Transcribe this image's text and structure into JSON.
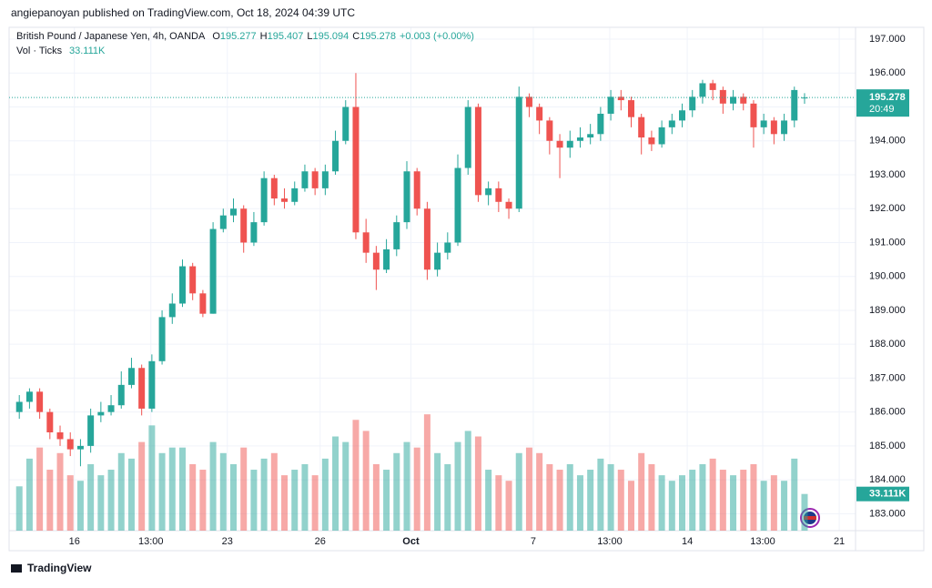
{
  "header": {
    "publisher": "angiepanoyan published on TradingView.com, Oct 18, 2024 04:39 UTC",
    "footer": "TradingView"
  },
  "chart_data": {
    "type": "candlestick",
    "symbol": "British Pound / Japanese Yen, 4h, OANDA",
    "ohlc_letters": [
      "O",
      "H",
      "L",
      "C"
    ],
    "change_label": "+0.003 (+0.00%)",
    "volume_title": "Vol · Ticks",
    "countdown": "20:49",
    "up_color": "#26a69a",
    "down_color": "#ef5350",
    "xlim": [
      -1,
      82
    ],
    "xticks": [
      {
        "value": 5.4,
        "label": "16"
      },
      {
        "value": 12.9,
        "label": "13:00"
      },
      {
        "value": 20.4,
        "label": "23"
      },
      {
        "value": 29.5,
        "label": "26"
      },
      {
        "value": 38.4,
        "label": "Oct"
      },
      {
        "value": 50.4,
        "label": "7"
      },
      {
        "value": 57.9,
        "label": "13:00"
      },
      {
        "value": 65.5,
        "label": "14"
      },
      {
        "value": 72.9,
        "label": "13:00"
      },
      {
        "value": 80.4,
        "label": "21"
      }
    ],
    "ylim": [
      182.5,
      197.35
    ],
    "yticks": [
      {
        "value": 183,
        "label": "183.000"
      },
      {
        "value": 184,
        "label": "184.000"
      },
      {
        "value": 185,
        "label": "185.000"
      },
      {
        "value": 186,
        "label": "186.000"
      },
      {
        "value": 187,
        "label": "187.000"
      },
      {
        "value": 188,
        "label": "188.000"
      },
      {
        "value": 189,
        "label": "189.000"
      },
      {
        "value": 190,
        "label": "190.000"
      },
      {
        "value": 191,
        "label": "191.000"
      },
      {
        "value": 192,
        "label": "192.000"
      },
      {
        "value": 193,
        "label": "193.000"
      },
      {
        "value": 194,
        "label": "194.000"
      },
      {
        "value": 195,
        "label": "195.000"
      },
      {
        "value": 196,
        "label": "196.000"
      },
      {
        "value": 197,
        "label": "197.000"
      }
    ],
    "grid": true,
    "open": [
      186.0,
      186.3,
      186.6,
      186.0,
      185.4,
      185.2,
      184.9,
      185.0,
      185.9,
      186.0,
      186.2,
      186.8,
      187.3,
      186.1,
      187.5,
      188.8,
      189.2,
      190.3,
      189.5,
      188.9,
      191.4,
      191.8,
      192.0,
      191.0,
      191.6,
      192.9,
      192.3,
      192.2,
      192.6,
      193.1,
      192.6,
      193.1,
      194.0,
      195.0,
      191.3,
      190.7,
      190.2,
      190.8,
      191.6,
      193.1,
      192.0,
      190.2,
      190.7,
      191.0,
      193.2,
      195.0,
      192.4,
      192.6,
      192.2,
      192.0,
      195.3,
      195.0,
      194.6,
      194.0,
      193.8,
      194.0,
      194.1,
      194.2,
      194.8,
      195.3,
      195.2,
      194.7,
      194.1,
      193.9,
      194.4,
      194.6,
      194.9,
      195.3,
      195.7,
      195.5,
      195.1,
      195.3,
      195.1,
      194.4,
      194.6,
      194.2,
      194.6,
      195.277
    ],
    "high": [
      186.5,
      186.7,
      186.7,
      186.1,
      185.6,
      185.4,
      185.2,
      186.1,
      186.3,
      186.5,
      187.2,
      187.6,
      187.4,
      187.7,
      189.0,
      189.5,
      190.5,
      190.4,
      189.6,
      191.6,
      192.0,
      192.3,
      192.1,
      191.9,
      193.1,
      193.0,
      192.6,
      192.8,
      193.3,
      193.2,
      193.3,
      194.3,
      195.2,
      196.0,
      191.7,
      190.9,
      191.1,
      191.8,
      193.4,
      193.2,
      192.2,
      191.0,
      191.3,
      193.6,
      195.2,
      195.1,
      192.8,
      192.8,
      192.3,
      195.6,
      195.4,
      195.1,
      194.7,
      194.2,
      194.3,
      194.4,
      194.5,
      195.0,
      195.5,
      195.5,
      195.3,
      194.8,
      194.3,
      194.6,
      194.8,
      195.1,
      195.5,
      195.8,
      195.8,
      195.6,
      195.5,
      195.4,
      195.2,
      194.8,
      194.7,
      194.8,
      195.6,
      195.407
    ],
    "low": [
      185.8,
      186.1,
      185.8,
      185.2,
      185.0,
      184.7,
      184.4,
      184.8,
      185.7,
      185.9,
      186.1,
      186.7,
      185.9,
      186.0,
      187.4,
      188.6,
      189.1,
      189.3,
      188.8,
      188.9,
      191.3,
      191.6,
      190.7,
      190.9,
      191.5,
      192.1,
      192.0,
      192.1,
      192.5,
      192.4,
      192.4,
      193.0,
      193.9,
      191.1,
      190.4,
      189.6,
      190.1,
      190.6,
      191.4,
      191.8,
      189.9,
      190.0,
      190.5,
      190.9,
      193.0,
      192.2,
      192.1,
      191.9,
      191.7,
      191.9,
      194.7,
      194.2,
      193.6,
      192.9,
      193.5,
      193.8,
      193.9,
      194.0,
      194.6,
      194.9,
      194.4,
      193.6,
      193.7,
      193.8,
      194.2,
      194.4,
      194.7,
      195.1,
      195.2,
      194.8,
      194.9,
      194.9,
      193.8,
      194.2,
      193.9,
      194.0,
      194.4,
      195.094
    ],
    "close": [
      186.3,
      186.6,
      186.0,
      185.4,
      185.2,
      184.9,
      185.0,
      185.9,
      186.0,
      186.2,
      186.8,
      187.3,
      186.1,
      187.5,
      188.8,
      189.2,
      190.3,
      189.5,
      188.9,
      191.4,
      191.8,
      192.0,
      191.0,
      191.6,
      192.9,
      192.3,
      192.2,
      192.6,
      193.1,
      192.6,
      193.1,
      194.0,
      195.0,
      191.3,
      190.7,
      190.2,
      190.8,
      191.6,
      193.1,
      192.0,
      190.2,
      190.7,
      191.0,
      193.2,
      195.0,
      192.4,
      192.6,
      192.2,
      192.0,
      195.3,
      195.0,
      194.6,
      194.0,
      193.8,
      194.0,
      194.1,
      194.2,
      194.8,
      195.3,
      195.2,
      194.7,
      194.1,
      193.9,
      194.4,
      194.6,
      194.9,
      195.3,
      195.7,
      195.5,
      195.1,
      195.3,
      195.1,
      194.4,
      194.6,
      194.2,
      194.6,
      195.5,
      195.278
    ],
    "volume": [
      40,
      65,
      75,
      55,
      70,
      50,
      45,
      60,
      50,
      55,
      70,
      65,
      80,
      95,
      70,
      75,
      75,
      60,
      55,
      80,
      70,
      60,
      75,
      55,
      65,
      70,
      50,
      55,
      60,
      50,
      65,
      85,
      80,
      100,
      90,
      60,
      55,
      70,
      80,
      75,
      105,
      70,
      60,
      80,
      90,
      85,
      55,
      50,
      45,
      70,
      75,
      70,
      60,
      55,
      60,
      50,
      55,
      65,
      60,
      55,
      45,
      70,
      60,
      50,
      45,
      50,
      55,
      60,
      65,
      55,
      50,
      55,
      60,
      45,
      50,
      45,
      65,
      33.111
    ],
    "volume_last_label": "33.111K",
    "y2lim": [
      0,
      115
    ]
  }
}
